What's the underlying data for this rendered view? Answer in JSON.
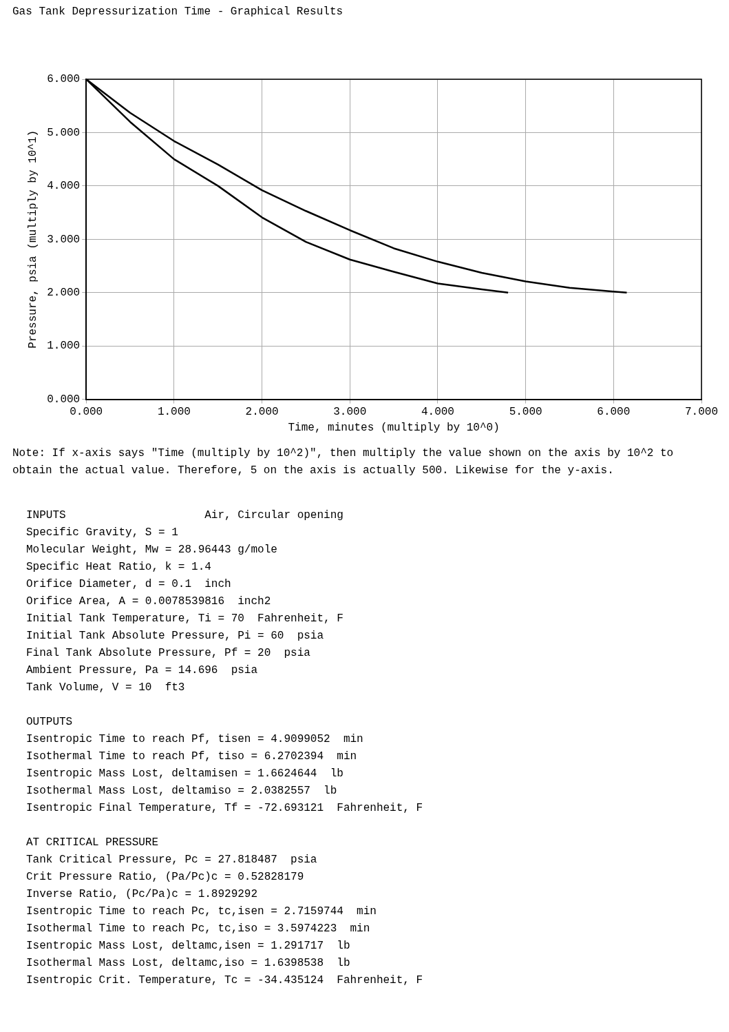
{
  "chart_data": {
    "type": "line",
    "title": "Gas Tank Depressurization Time - Graphical Results",
    "xlabel": "Time, minutes (multiply by 10^0)",
    "ylabel": "Pressure, psia (multiply by 10^1)",
    "xlim": [
      0,
      7
    ],
    "ylim": [
      0,
      6
    ],
    "xticks": [
      {
        "value": 0,
        "label": "0.000"
      },
      {
        "value": 1,
        "label": "1.000"
      },
      {
        "value": 2,
        "label": "2.000"
      },
      {
        "value": 3,
        "label": "3.000"
      },
      {
        "value": 4,
        "label": "4.000"
      },
      {
        "value": 5,
        "label": "5.000"
      },
      {
        "value": 6,
        "label": "6.000"
      },
      {
        "value": 7,
        "label": "7.000"
      }
    ],
    "yticks": [
      {
        "value": 0,
        "label": "0.000"
      },
      {
        "value": 1,
        "label": "1.000"
      },
      {
        "value": 2,
        "label": "2.000"
      },
      {
        "value": 3,
        "label": "3.000"
      },
      {
        "value": 4,
        "label": "4.000"
      },
      {
        "value": 5,
        "label": "5.000"
      },
      {
        "value": 6,
        "label": "6.000"
      }
    ],
    "grid": true,
    "legend": false,
    "marker": "none",
    "line_style": "solid",
    "series": [
      {
        "color": "#000000",
        "x": [
          0,
          0.5,
          1,
          1.5,
          2,
          2.5,
          3,
          3.5,
          4,
          4.5,
          5,
          5.5,
          6,
          6.15
        ],
        "values": [
          6,
          5.37,
          4.84,
          4.4,
          3.92,
          3.53,
          3.17,
          2.83,
          2.58,
          2.37,
          2.21,
          2.09,
          2.02,
          2.0
        ]
      },
      {
        "color": "#000000",
        "x": [
          0,
          0.5,
          1,
          1.5,
          2,
          2.5,
          3,
          3.5,
          4,
          4.5,
          4.8
        ],
        "values": [
          6,
          5.2,
          4.5,
          4.0,
          3.41,
          2.95,
          2.62,
          2.39,
          2.17,
          2.06,
          2.0
        ]
      }
    ],
    "annotations": [
      "Note: If x-axis says \"Time (multiply by 10^2)\", then multiply the value shown on the axis by 10^2 to obtain the actual value. Therefore, 5 on the axis is actually 500. Likewise for the y-axis.",
      "INPUTS                     Air, Circular opening",
      "Specific Gravity, S = 1",
      "Molecular Weight, Mw = 28.96443 g/mole",
      "Specific Heat Ratio, k = 1.4",
      "Orifice Diameter, d = 0.1  inch",
      "Orifice Area, A = 0.0078539816  inch2",
      "Initial Tank Temperature, Ti = 70  Fahrenheit, F",
      "Initial Tank Absolute Pressure, Pi = 60  psia",
      "Final Tank Absolute Pressure, Pf = 20  psia",
      "Ambient Pressure, Pa = 14.696  psia",
      "Tank Volume, V = 10  ft3",
      "OUTPUTS",
      "Isentropic Time to reach Pf, tisen = 4.9099052  min",
      "Isothermal Time to reach Pf, tiso = 6.2702394  min",
      "Isentropic Mass Lost, deltamisen = 1.6624644  lb",
      "Isothermal Mass Lost, deltamiso = 2.0382557  lb",
      "Isentropic Final Temperature, Tf = -72.693121  Fahrenheit, F",
      "AT CRITICAL PRESSURE",
      "Tank Critical Pressure, Pc = 27.818487  psia",
      "Crit Pressure Ratio, (Pa/Pc)c = 0.52828179",
      "Inverse Ratio, (Pc/Pa)c = 1.8929292",
      "Isentropic Time to reach Pc, tc,isen = 2.7159744  min",
      "Isothermal Time to reach Pc, tc,iso = 3.5974223  min",
      "Isentropic Mass Lost, deltamc,isen = 1.291717  lb",
      "Isothermal Mass Lost, deltamc,iso = 1.6398538  lb",
      "Isentropic Crit. Temperature, Tc = -34.435124  Fahrenheit, F"
    ]
  }
}
